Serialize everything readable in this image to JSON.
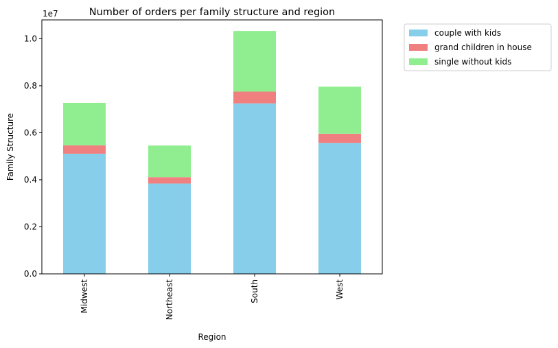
{
  "chart_data": {
    "type": "bar",
    "stacked": true,
    "title": "Number of orders per family structure and region",
    "xlabel": "Region",
    "ylabel": "Family Structure",
    "y_scale_label": "1e7",
    "ylim": [
      0,
      1.08
    ],
    "yticks": [
      0.0,
      0.2,
      0.4,
      0.6,
      0.8,
      1.0
    ],
    "ytick_labels": [
      "0.0",
      "0.2",
      "0.4",
      "0.6",
      "0.8",
      "1.0"
    ],
    "categories": [
      "Midwest",
      "Northeast",
      "South",
      "West"
    ],
    "series": [
      {
        "name": "couple with kids",
        "color": "#87ceeb",
        "values": [
          0.511,
          0.384,
          0.725,
          0.557
        ]
      },
      {
        "name": "grand children in house",
        "color": "#f08080",
        "values": [
          0.036,
          0.027,
          0.05,
          0.039
        ]
      },
      {
        "name": "single without kids",
        "color": "#90ee90",
        "values": [
          0.18,
          0.135,
          0.258,
          0.2
        ]
      }
    ],
    "grid": false,
    "legend_position": "outside-upper-right"
  }
}
